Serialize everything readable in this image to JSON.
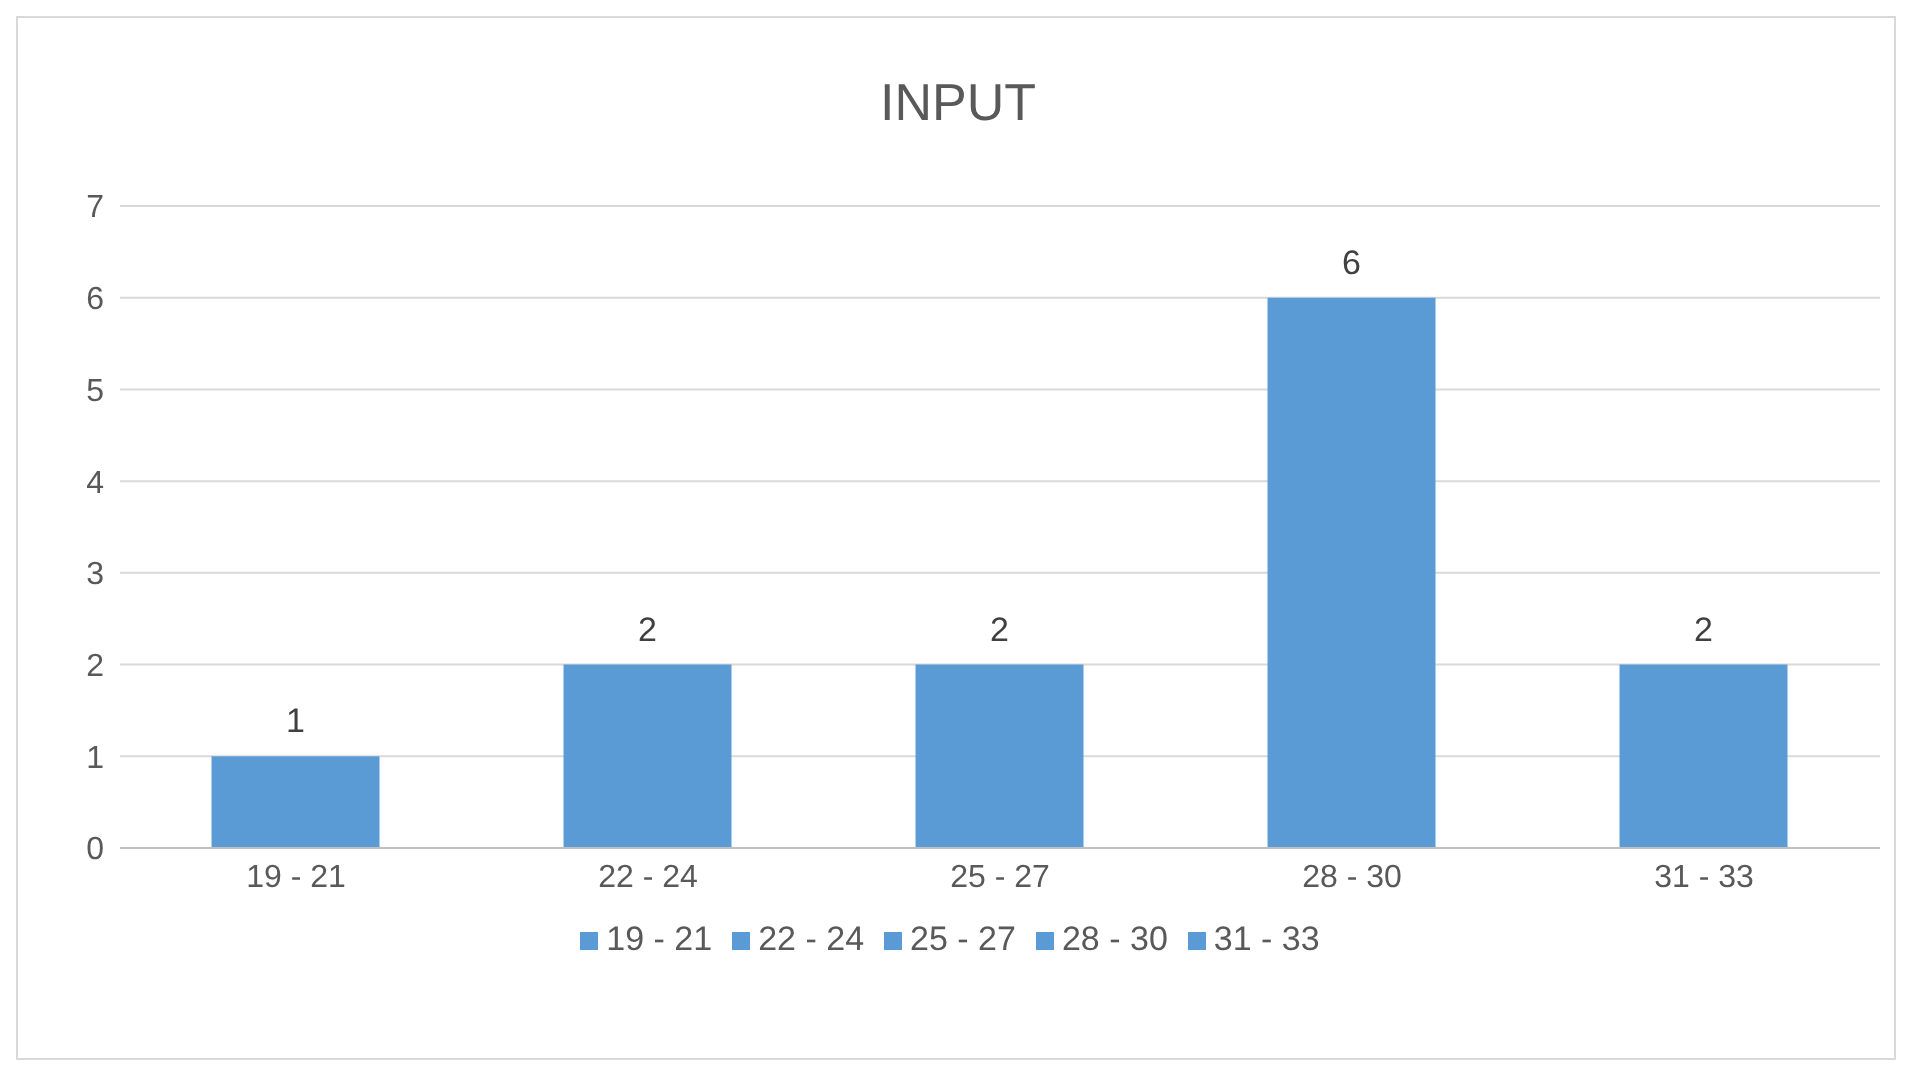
{
  "chart_data": {
    "type": "bar",
    "title": "INPUT",
    "categories": [
      "19 - 21",
      "22 - 24",
      "25 - 27",
      "28 - 30",
      "31 - 33"
    ],
    "stacked": true,
    "series": [
      {
        "name": "19 - 21",
        "color": "#5b9bd5",
        "values": [
          1,
          null,
          null,
          null,
          null
        ]
      },
      {
        "name": "22 - 24",
        "color": "#5b9bd5",
        "values": [
          null,
          2,
          null,
          null,
          null
        ]
      },
      {
        "name": "25 - 27",
        "color": "#5b9bd5",
        "values": [
          null,
          null,
          2,
          null,
          null
        ]
      },
      {
        "name": "28 - 30",
        "color": "#5b9bd5",
        "values": [
          null,
          null,
          null,
          6,
          null
        ]
      },
      {
        "name": "31 - 33",
        "color": "#5b9bd5",
        "values": [
          null,
          null,
          null,
          null,
          2
        ]
      }
    ],
    "ylim": [
      0,
      7
    ],
    "yticks": [
      0,
      1,
      2,
      3,
      4,
      5,
      6,
      7
    ],
    "grid": "y",
    "legend": "bottom",
    "data_labels": true
  }
}
